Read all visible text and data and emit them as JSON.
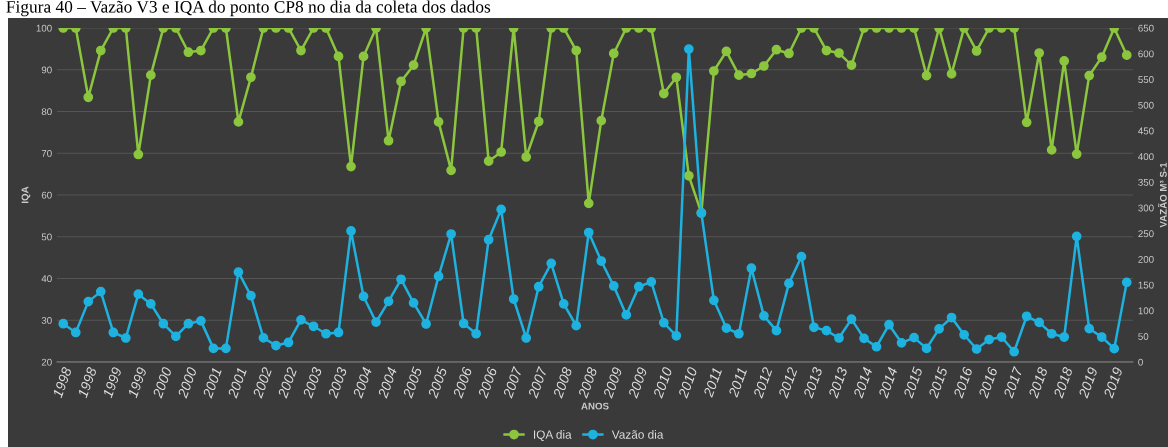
{
  "chart_data": {
    "type": "line",
    "title": "Figura 40 – Vazão V3 e IQA do ponto CP8 no dia da coleta dos dados",
    "xlabel": "ANOS",
    "ylabel": "IQA",
    "y2label": "VAZÃO M³ S-1",
    "categories": [
      "1998",
      null,
      "1998",
      null,
      "1999",
      null,
      "1999",
      null,
      "2000",
      null,
      "2000",
      null,
      "2001",
      null,
      "2001",
      null,
      "2002",
      null,
      "2002",
      null,
      "2003",
      null,
      "2003",
      null,
      "2004",
      null,
      "2004",
      null,
      "2005",
      null,
      "2005",
      null,
      "2006",
      null,
      "2006",
      null,
      "2007",
      null,
      "2007",
      null,
      "2008",
      null,
      "2008",
      null,
      "2009",
      null,
      "2009",
      null,
      "2010",
      null,
      "2010",
      null,
      "2011",
      null,
      "2011",
      null,
      "2012",
      null,
      "2012",
      null,
      "2013",
      null,
      "2013",
      null,
      "2014",
      null,
      "2014",
      null,
      "2015",
      null,
      "2015",
      null,
      "2016",
      null,
      "2016",
      null,
      "2017",
      null,
      "2018",
      null,
      "2018",
      null,
      "2019",
      null,
      "2019",
      null
    ],
    "series": [
      {
        "name": "IQA dia",
        "color": "#8cc63e",
        "values": [
          100,
          100,
          83.4,
          94.6,
          100,
          100,
          69.7,
          88.7,
          100,
          100,
          94.2,
          94.6,
          100,
          100,
          77.5,
          88.2,
          100,
          100,
          100,
          94.6,
          100,
          100,
          93.2,
          66.8,
          93.2,
          100,
          73.0,
          87.2,
          91.1,
          100,
          77.5,
          65.9,
          100,
          100,
          68.1,
          70.3,
          100,
          69.1,
          77.6,
          100,
          100,
          94.6,
          58.0,
          77.8,
          93.9,
          100,
          100,
          100,
          84.3,
          88.2,
          64.6,
          55.7,
          89.7,
          94.4,
          88.7,
          89.1,
          90.9,
          94.8,
          93.9,
          100,
          100,
          94.6,
          94.0,
          91.1,
          100,
          100,
          100,
          100,
          100,
          88.6,
          100,
          89.0,
          100,
          94.5,
          100,
          100,
          100,
          77.4,
          94.0,
          70.8,
          92.1,
          69.8,
          88.6,
          93.0,
          100,
          93.5
        ]
      },
      {
        "name": "Vazão dia",
        "color": "#1eb2e0",
        "axis": "y2",
        "values": [
          74.5,
          57.5,
          117.5,
          137,
          57.5,
          46.7,
          132,
          113,
          74.5,
          50,
          74.5,
          80,
          26.5,
          26.5,
          175,
          129,
          47,
          32,
          38,
          82,
          69.5,
          55,
          57.5,
          255,
          127.6,
          77.7,
          118,
          161,
          115,
          74,
          167,
          249,
          75,
          55,
          238,
          297,
          122.5,
          46.7,
          146.5,
          192,
          113,
          70.7,
          252,
          196.5,
          148,
          91.6,
          146.5,
          156,
          76.4,
          51,
          609,
          290,
          120,
          66,
          55,
          182.5,
          89.7,
          61,
          153,
          205,
          67.6,
          61,
          46.7,
          83.4,
          46,
          29.7,
          72.6,
          37.3,
          47.4,
          26.5,
          64.4,
          86.5,
          53,
          25.3,
          43.6,
          48.6,
          20,
          89,
          77,
          55,
          48.6,
          244.5,
          65,
          48.6,
          26,
          155
        ]
      }
    ],
    "ylim": [
      20,
      100
    ],
    "yticks": [
      20,
      30,
      40,
      50,
      60,
      70,
      80,
      90,
      100
    ],
    "y2lim": [
      0,
      650
    ],
    "y2ticks": [
      0,
      50,
      100,
      150,
      200,
      250,
      300,
      350,
      400,
      450,
      500,
      550,
      600,
      650
    ],
    "grid": "y",
    "legend": "bottom",
    "marker": "circle",
    "line_style": "solid"
  }
}
